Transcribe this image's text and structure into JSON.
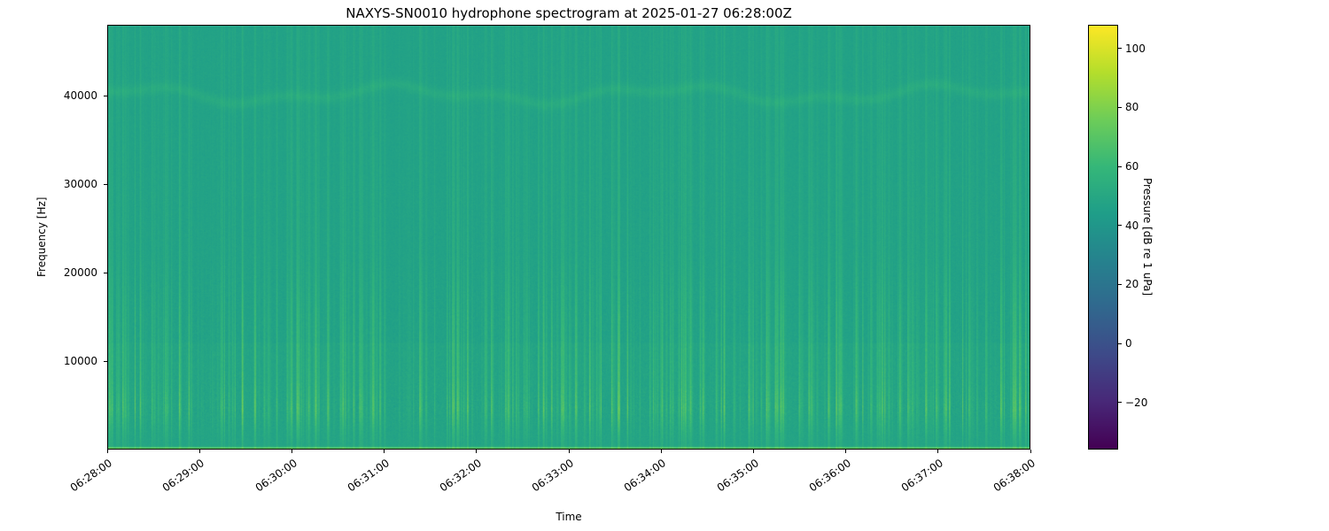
{
  "figure": {
    "title": "NAXYS-SN0010 hydrophone spectrogram at 2025-01-27 06:28:00Z",
    "xlabel": "Time",
    "ylabel": "Frequency [Hz]",
    "colorbar_label": "Pressure [dB re 1 uPa]"
  },
  "chart_data": {
    "type": "heatmap",
    "title": "NAXYS-SN0010 hydrophone spectrogram at 2025-01-27 06:28:00Z",
    "xlabel": "Time",
    "ylabel": "Frequency [Hz]",
    "x_ticks": [
      "06:28:00",
      "06:29:00",
      "06:30:00",
      "06:31:00",
      "06:32:00",
      "06:33:00",
      "06:34:00",
      "06:35:00",
      "06:36:00",
      "06:37:00",
      "06:38:00"
    ],
    "x_range": [
      "06:28:00",
      "06:38:00"
    ],
    "y_ticks": [
      10000,
      20000,
      30000,
      40000
    ],
    "y_range_hz": [
      0,
      48000
    ],
    "colormap": "viridis",
    "grid": false,
    "colorbar": {
      "label": "Pressure [dB re 1 uPa]",
      "ticks": [
        100,
        80,
        60,
        40,
        20,
        0,
        -20
      ],
      "tick_labels": [
        "100",
        "80",
        "60",
        "40",
        "20",
        "0",
        "−20"
      ],
      "vmin": -36,
      "vmax": 108
    },
    "content_summary": {
      "background_level_db": 47,
      "features": [
        "dense vertical broadband transient streaks across the whole record, strongest between about 2 and 8 kHz where peaks reach roughly 70-80 dB",
        "faint wavy narrowband tonal near 39-41 kHz spanning the full duration",
        "bright broadband energy line hugging the bottom edge below about 300 Hz",
        "slightly elevated diffuse energy below about 12 kHz"
      ]
    },
    "render": {
      "seed": 42,
      "background_db": 46.5,
      "lowfreq_extra_db": 1.3,
      "lowfreq_cutoff_hz": 12000,
      "transient_count": 430,
      "transient_max_boost_db": 27,
      "noise_db": 2.1,
      "freq_profile": [
        [
          0,
          0.25
        ],
        [
          1500,
          0.45
        ],
        [
          4500,
          1.0
        ],
        [
          8000,
          0.72
        ],
        [
          15000,
          0.62
        ],
        [
          22000,
          0.34
        ],
        [
          48000,
          0.2
        ]
      ],
      "band_center_hz": 40200,
      "band_wiggle_hz": 750,
      "band_width_hz": 650,
      "band_boost_db": 4.5,
      "floor_cutoff_hz": 320,
      "floor_boost_db": 28
    }
  }
}
